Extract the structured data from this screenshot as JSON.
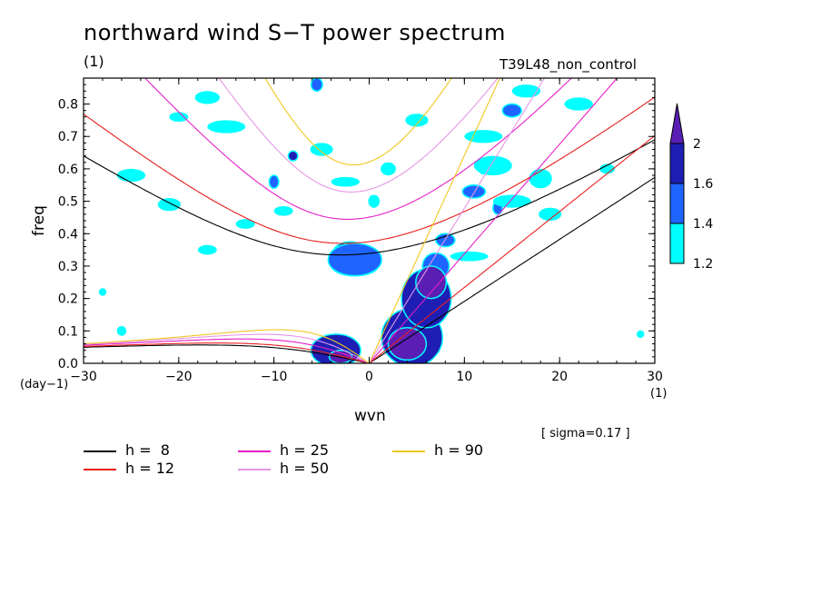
{
  "chart_data": {
    "type": "heatmap",
    "title": "northward wind S−T power spectrum",
    "subtitle_left": "(1)",
    "subtitle_right": "T39L48_non_control",
    "xlabel": "wvn",
    "ylabel": "freq",
    "x_unit": "(1)",
    "y_unit": "(day−1)",
    "xlim": [
      -30,
      30
    ],
    "ylim": [
      0,
      0.88
    ],
    "xticks": [
      -30,
      -20,
      -10,
      0,
      10,
      20,
      30
    ],
    "xtick_labels": [
      "−30",
      "−20",
      "−10",
      "0",
      "10",
      "20",
      "30"
    ],
    "yticks": [
      0,
      0.1,
      0.2,
      0.3,
      0.4,
      0.5,
      0.6,
      0.7,
      0.8
    ],
    "ytick_labels": [
      "0.0",
      "0.1",
      "0.2",
      "0.3",
      "0.4",
      "0.5",
      "0.6",
      "0.7",
      "0.8"
    ],
    "colorbar": {
      "levels": [
        1.2,
        1.4,
        1.6,
        2
      ],
      "level_labels": [
        "1.2",
        "1.4",
        "1.6",
        "2"
      ],
      "colors": [
        "#00ffff",
        "#1e64ff",
        "#1e1eb4",
        "#5a1eb4"
      ]
    },
    "annotation": "[ sigma=0.17 ]",
    "dispersion_curves": [
      {
        "h": 8,
        "label": "h =  8",
        "color": "#000000"
      },
      {
        "h": 12,
        "label": "h = 12",
        "color": "#e61e1e"
      },
      {
        "h": 25,
        "label": "h = 25",
        "color": "#e61ec8"
      },
      {
        "h": 50,
        "label": "h = 50",
        "color": "#e696e6"
      },
      {
        "h": 90,
        "label": "h = 90",
        "color": "#f0c81e"
      }
    ],
    "regions": [
      {
        "x": 4.5,
        "y": 0.08,
        "rx": 3.2,
        "ry": 0.09,
        "level": 2
      },
      {
        "x": 6.0,
        "y": 0.2,
        "rx": 2.6,
        "ry": 0.09,
        "level": 2
      },
      {
        "x": 7.0,
        "y": 0.3,
        "rx": 1.4,
        "ry": 0.04,
        "level": 1
      },
      {
        "x": 6.5,
        "y": 0.25,
        "rx": 1.6,
        "ry": 0.05,
        "level": 3
      },
      {
        "x": 4.0,
        "y": 0.06,
        "rx": 2.0,
        "ry": 0.05,
        "level": 3
      },
      {
        "x": -3.5,
        "y": 0.04,
        "rx": 2.6,
        "ry": 0.05,
        "level": 2
      },
      {
        "x": -3.0,
        "y": 0.02,
        "rx": 1.2,
        "ry": 0.02,
        "level": 3
      },
      {
        "x": -2.0,
        "y": 0.34,
        "rx": 1.8,
        "ry": 0.035,
        "level": 2
      },
      {
        "x": -1.5,
        "y": 0.3,
        "rx": 2.4,
        "ry": 0.03,
        "level": 2
      },
      {
        "x": -1.5,
        "y": 0.32,
        "rx": 2.8,
        "ry": 0.05,
        "level": 1
      },
      {
        "x": 0.5,
        "y": 0.5,
        "rx": 0.6,
        "ry": 0.02,
        "level": 0
      },
      {
        "x": 8.0,
        "y": 0.38,
        "rx": 1.0,
        "ry": 0.02,
        "level": 1
      },
      {
        "x": 11.0,
        "y": 0.53,
        "rx": 1.2,
        "ry": 0.02,
        "level": 1
      },
      {
        "x": 15.0,
        "y": 0.78,
        "rx": 1.0,
        "ry": 0.02,
        "level": 1
      },
      {
        "x": -10.0,
        "y": 0.56,
        "rx": 0.5,
        "ry": 0.02,
        "level": 1
      },
      {
        "x": -5.5,
        "y": 0.86,
        "rx": 0.6,
        "ry": 0.02,
        "level": 1
      },
      {
        "x": -8.0,
        "y": 0.64,
        "rx": 0.5,
        "ry": 0.015,
        "level": 2
      },
      {
        "x": 12.0,
        "y": 0.6,
        "rx": 0.5,
        "ry": 0.015,
        "level": 1
      },
      {
        "x": 13.5,
        "y": 0.48,
        "rx": 0.5,
        "ry": 0.02,
        "level": 1
      },
      {
        "x": 10.5,
        "y": 0.33,
        "rx": 2.0,
        "ry": 0.015,
        "level": 0
      },
      {
        "x": 12.0,
        "y": 0.7,
        "rx": 2.0,
        "ry": 0.02,
        "level": 0
      },
      {
        "x": 16.5,
        "y": 0.84,
        "rx": 1.5,
        "ry": 0.02,
        "level": 0
      },
      {
        "x": 18.0,
        "y": 0.57,
        "rx": 1.2,
        "ry": 0.03,
        "level": 0
      },
      {
        "x": 13.0,
        "y": 0.61,
        "rx": 2.0,
        "ry": 0.03,
        "level": 0
      },
      {
        "x": 15.0,
        "y": 0.5,
        "rx": 2.0,
        "ry": 0.02,
        "level": 0
      },
      {
        "x": 19.0,
        "y": 0.46,
        "rx": 1.2,
        "ry": 0.02,
        "level": 0
      },
      {
        "x": -2.5,
        "y": 0.56,
        "rx": 1.5,
        "ry": 0.015,
        "level": 0
      },
      {
        "x": -17.0,
        "y": 0.82,
        "rx": 1.3,
        "ry": 0.02,
        "level": 0
      },
      {
        "x": -20.0,
        "y": 0.76,
        "rx": 1.0,
        "ry": 0.015,
        "level": 0
      },
      {
        "x": -25.0,
        "y": 0.58,
        "rx": 1.5,
        "ry": 0.02,
        "level": 0
      },
      {
        "x": -15.0,
        "y": 0.73,
        "rx": 2.0,
        "ry": 0.02,
        "level": 0
      },
      {
        "x": -13.0,
        "y": 0.43,
        "rx": 1.0,
        "ry": 0.015,
        "level": 0
      },
      {
        "x": -26.0,
        "y": 0.1,
        "rx": 0.5,
        "ry": 0.015,
        "level": 0
      },
      {
        "x": -17.0,
        "y": 0.35,
        "rx": 1.0,
        "ry": 0.015,
        "level": 0
      },
      {
        "x": 2.0,
        "y": 0.6,
        "rx": 0.8,
        "ry": 0.02,
        "level": 0
      },
      {
        "x": 25.0,
        "y": 0.6,
        "rx": 0.8,
        "ry": 0.015,
        "level": 0
      },
      {
        "x": 22.0,
        "y": 0.8,
        "rx": 1.5,
        "ry": 0.02,
        "level": 0
      },
      {
        "x": 5.0,
        "y": 0.75,
        "rx": 1.2,
        "ry": 0.02,
        "level": 0
      },
      {
        "x": -9.0,
        "y": 0.47,
        "rx": 1.0,
        "ry": 0.015,
        "level": 0
      },
      {
        "x": -5.0,
        "y": 0.66,
        "rx": 1.2,
        "ry": 0.02,
        "level": 0
      },
      {
        "x": 28.5,
        "y": 0.09,
        "rx": 0.4,
        "ry": 0.012,
        "level": 0
      },
      {
        "x": -28.0,
        "y": 0.22,
        "rx": 0.4,
        "ry": 0.012,
        "level": 0
      },
      {
        "x": -21.0,
        "y": 0.49,
        "rx": 1.2,
        "ry": 0.02,
        "level": 0
      }
    ]
  }
}
